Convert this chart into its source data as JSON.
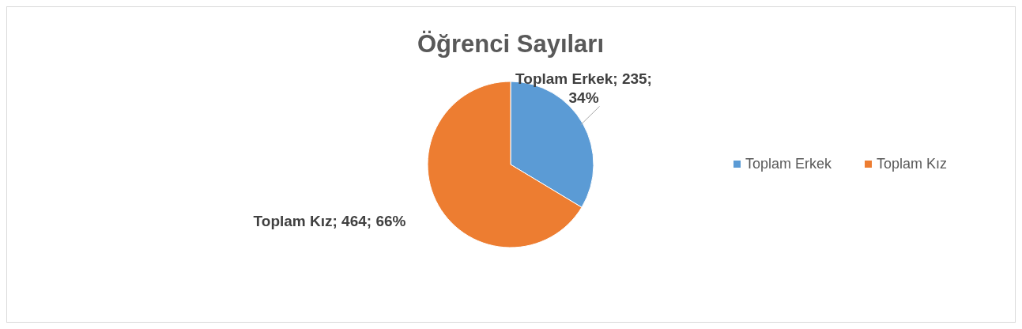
{
  "chart_data": {
    "type": "pie",
    "title": "Öğrenci Sayıları",
    "categories": [
      "Toplam Erkek",
      "Toplam Kız"
    ],
    "values": [
      235,
      464
    ],
    "colors": [
      "#5b9bd5",
      "#ed7d31"
    ],
    "value_labels": [
      "Toplam Erkek; 235; 34%",
      "Toplam Kız; 464; 66%"
    ],
    "legend": "right"
  }
}
